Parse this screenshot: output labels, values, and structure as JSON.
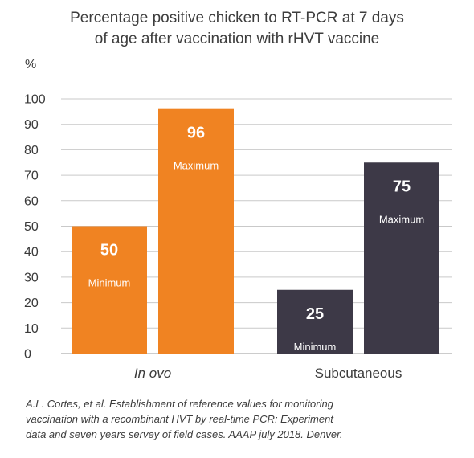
{
  "chart_data": {
    "type": "bar",
    "title": "Percentage positive chicken to RT-PCR at 7 days of age after vaccination with rHVT vaccine",
    "title_lines": [
      "Percentage positive chicken to RT-PCR at 7 days",
      "of age after vaccination with rHVT vaccine"
    ],
    "ylabel": "%",
    "ylim": [
      0,
      100
    ],
    "yticks": [
      0,
      10,
      20,
      30,
      40,
      50,
      60,
      70,
      80,
      90,
      100
    ],
    "grid": true,
    "categories": [
      "In ovo",
      "Subcutaneous"
    ],
    "series": [
      {
        "values": [
          50,
          25
        ],
        "labels": [
          "Minimum",
          "Minimum"
        ]
      },
      {
        "values": [
          96,
          75
        ],
        "labels": [
          "Maximum",
          "Maximum"
        ]
      }
    ],
    "category_colors": [
      "#f08322",
      "#3d3947"
    ]
  },
  "footnote": {
    "lines": [
      "A.L. Cortes, et al. Establishment of reference values for monitoring",
      "vaccination with a recombinant HVT by real-time PCR: Experiment",
      "data and seven years servey of field cases. AAAP july 2018. Denver."
    ]
  }
}
